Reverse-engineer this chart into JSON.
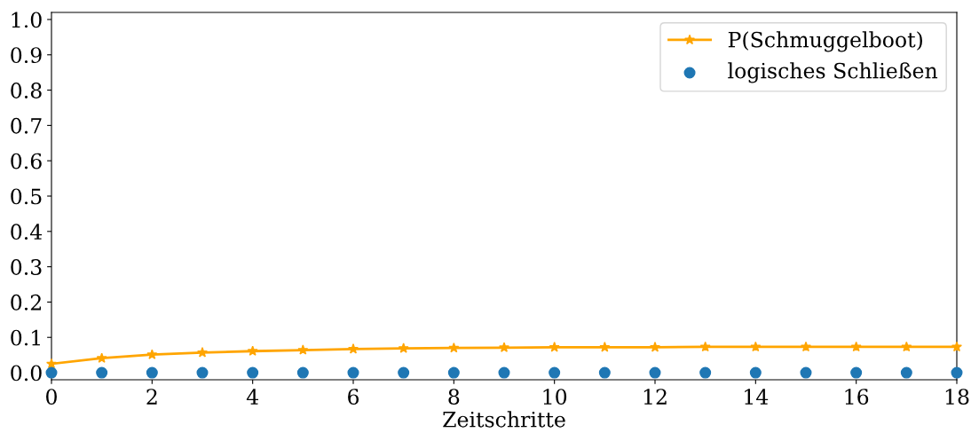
{
  "chart_data": {
    "type": "line",
    "xlabel": "Zeitschritte",
    "x": [
      0,
      1,
      2,
      3,
      4,
      5,
      6,
      7,
      8,
      9,
      10,
      11,
      12,
      13,
      14,
      15,
      16,
      17,
      18
    ],
    "series": [
      {
        "name": "P(Schmuggelboot)",
        "color": "#ffa500",
        "marker": "star",
        "line_style": "solid",
        "values": [
          0.025,
          0.041,
          0.051,
          0.057,
          0.061,
          0.064,
          0.067,
          0.069,
          0.07,
          0.071,
          0.072,
          0.072,
          0.072,
          0.073,
          0.073,
          0.073,
          0.073,
          0.073,
          0.073
        ]
      },
      {
        "name": "logisches Schließen",
        "type": "scatter",
        "color": "#1f77b4",
        "marker": "circle",
        "values": [
          0,
          0,
          0,
          0,
          0,
          0,
          0,
          0,
          0,
          0,
          0,
          0,
          0,
          0,
          0,
          0,
          0,
          0,
          0
        ]
      }
    ],
    "xlim": [
      0,
      18
    ],
    "xticks": [
      0,
      2,
      4,
      6,
      8,
      10,
      12,
      14,
      16,
      18
    ],
    "ylim": [
      -0.02,
      1.02
    ],
    "yticks": [
      {
        "value": 0,
        "label": "0.0"
      },
      {
        "value": 0.1,
        "label": "0.1"
      },
      {
        "value": 0.2,
        "label": "0.2"
      },
      {
        "value": 0.3,
        "label": "0.3"
      },
      {
        "value": 0.4,
        "label": "0.4"
      },
      {
        "value": 0.5,
        "label": "0.5"
      },
      {
        "value": 0.6,
        "label": "0.6"
      },
      {
        "value": 0.7,
        "label": "0.7"
      },
      {
        "value": 0.8,
        "label": "0.8"
      },
      {
        "value": 0.9,
        "label": "0.9"
      },
      {
        "value": 1,
        "label": "1.0"
      }
    ],
    "grid": false,
    "legend": "top right"
  }
}
